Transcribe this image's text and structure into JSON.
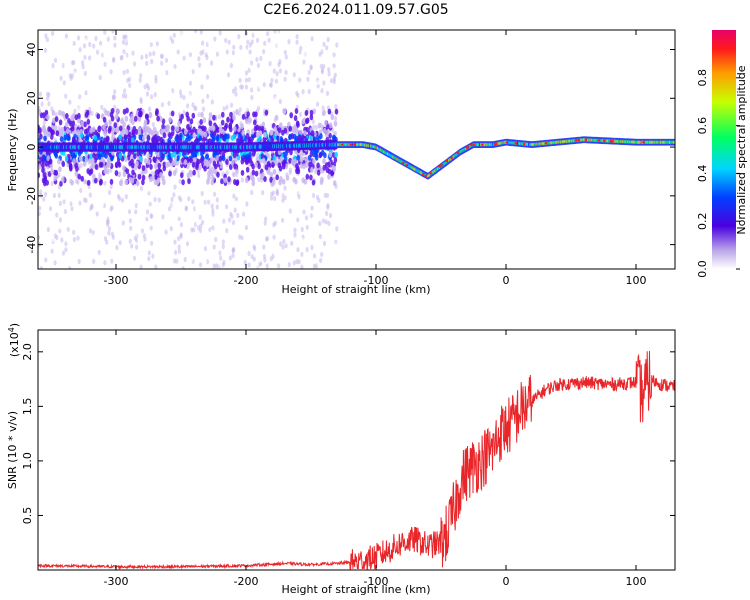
{
  "title": "C2E6.2024.011.09.57.G05",
  "chart_data": [
    {
      "type": "heatmap",
      "xlabel": "Height of straight line (km)",
      "ylabel": "Frequency (Hz)",
      "xlim": [
        -360,
        130
      ],
      "ylim": [
        -50,
        48
      ],
      "xticks": [
        -300,
        -200,
        -100,
        0,
        100
      ],
      "yticks": [
        -40,
        -20,
        0,
        20,
        40
      ],
      "colorbar": {
        "label": "Normalized spectral amplitude",
        "range": [
          0,
          1
        ],
        "ticks": [
          "0.0",
          "0.2",
          "0.4",
          "0.6",
          "0.8"
        ],
        "tick_values": [
          0,
          0.2,
          0.4,
          0.6,
          0.8
        ]
      },
      "ridge": {
        "description_points_x": [
          -360,
          -200,
          -130,
          -110,
          -100,
          -90,
          -80,
          -70,
          -60,
          -55,
          -45,
          -35,
          -25,
          -10,
          0,
          20,
          60,
          100,
          130
        ],
        "frequency_hz": [
          0,
          0,
          1,
          1,
          0,
          -3,
          -6,
          -9,
          -12,
          -10,
          -6,
          -2,
          1,
          1,
          2,
          1,
          3,
          2,
          2
        ]
      }
    },
    {
      "type": "line",
      "xlabel": "Height of straight line (km)",
      "ylabel": "SNR (10 * v/v)",
      "y_multiplier": "(x10",
      "y_multiplier_exp": "4",
      "xlim": [
        -360,
        130
      ],
      "ylim": [
        0,
        2.2
      ],
      "xticks": [
        -300,
        -200,
        -100,
        0,
        100
      ],
      "yticks": [
        "0.5",
        "1.0",
        "1.5",
        "2.0"
      ],
      "ytick_values": [
        0.5,
        1.0,
        1.5,
        2.0
      ],
      "series": [
        {
          "color": "#e8262a",
          "x": [
            -360,
            -300,
            -250,
            -200,
            -170,
            -150,
            -130,
            -110,
            -100,
            -90,
            -80,
            -70,
            -60,
            -50,
            -45,
            -40,
            -35,
            -30,
            -25,
            -20,
            -15,
            -10,
            -5,
            0,
            5,
            10,
            15,
            20,
            30,
            40,
            60,
            80,
            100,
            105,
            110,
            120,
            130
          ],
          "y": [
            0.04,
            0.03,
            0.03,
            0.04,
            0.06,
            0.05,
            0.06,
            0.08,
            0.12,
            0.18,
            0.25,
            0.28,
            0.22,
            0.25,
            0.35,
            0.55,
            0.8,
            0.9,
            0.95,
            1.0,
            1.05,
            1.1,
            1.25,
            1.3,
            1.35,
            1.45,
            1.5,
            1.55,
            1.65,
            1.7,
            1.72,
            1.7,
            1.72,
            1.6,
            1.75,
            1.7,
            1.68
          ]
        }
      ]
    }
  ]
}
